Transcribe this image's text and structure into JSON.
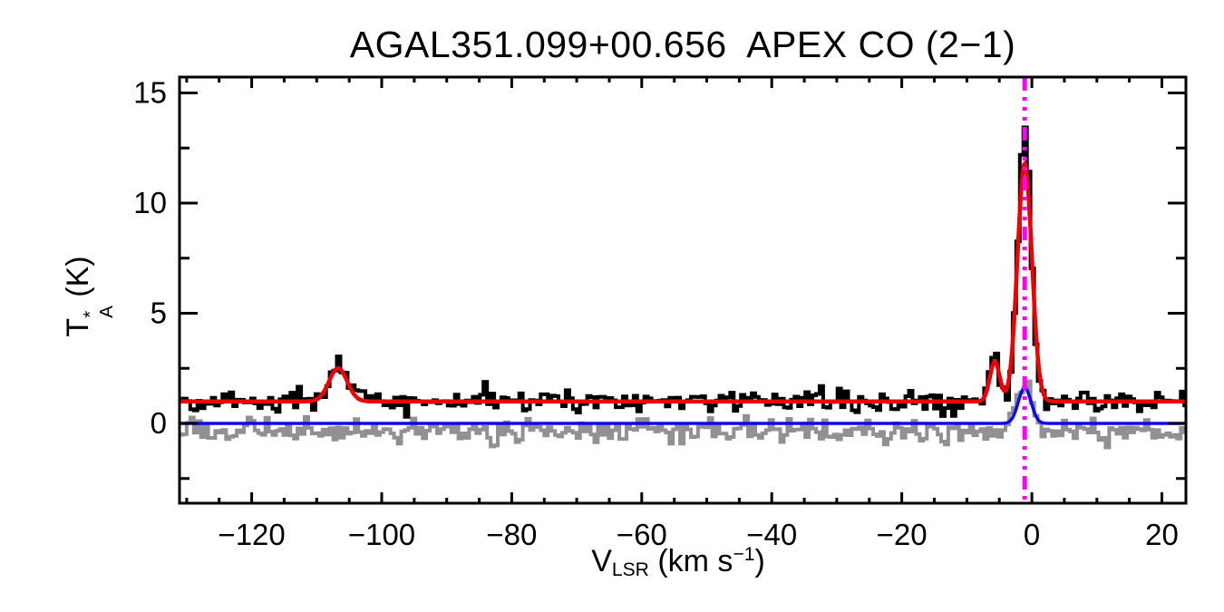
{
  "chart_data": {
    "type": "line",
    "title": "AGAL351.099+00.656  APEX CO (2−1)",
    "xlabel_parts": {
      "base": "V",
      "sub": "LSR",
      "mid": " (km s",
      "sup": "−1",
      "end": ")"
    },
    "ylabel_parts": {
      "base": "T",
      "sup": "*",
      "sub": "A",
      "unit": " (K)"
    },
    "xlim": [
      -131.1,
      23.7
    ],
    "ylim": [
      -3.62,
      15.72
    ],
    "x_ticks": {
      "major": [
        -120,
        -100,
        -80,
        -60,
        -40,
        -20,
        0,
        20
      ],
      "minor_step": 5
    },
    "y_ticks": {
      "major": [
        0,
        5,
        10,
        15
      ],
      "minor_step": 2.5
    },
    "grid": false,
    "legend": null,
    "box_axes": true,
    "channel_width_kms": 0.55,
    "series": [
      {
        "name": "residual spectrum",
        "role": "histogram",
        "color": "#919191",
        "line_width": 4,
        "baseline_K": -0.33,
        "noise_sigma_K": 0.27,
        "noise_seed": 911,
        "gaussians": [
          {
            "center_kms": -1.1,
            "amplitude_K": 2.15,
            "fwhm_kms": 2.8
          }
        ]
      },
      {
        "name": "observed CO (2-1) spectrum",
        "role": "histogram",
        "color": "#000000",
        "line_width": 4,
        "baseline_K": 1.0,
        "noise_sigma_K": 0.25,
        "noise_seed": 42,
        "gaussians": [
          {
            "center_kms": -106.7,
            "amplitude_K": 1.75,
            "fwhm_kms": 3.3
          },
          {
            "center_kms": -5.7,
            "amplitude_K": 1.95,
            "fwhm_kms": 1.8
          },
          {
            "center_kms": -1.1,
            "amplitude_K": 12.4,
            "fwhm_kms": 2.4
          }
        ]
      },
      {
        "name": "gaussian fit",
        "role": "curve",
        "color": "#ee0000",
        "line_width": 4.5,
        "baseline_K": 1.0,
        "noise_sigma_K": 0,
        "gaussians": [
          {
            "center_kms": -106.7,
            "amplitude_K": 1.5,
            "fwhm_kms": 3.3
          },
          {
            "center_kms": -5.7,
            "amplitude_K": 1.8,
            "fwhm_kms": 1.8
          },
          {
            "center_kms": -1.1,
            "amplitude_K": 10.8,
            "fwhm_kms": 2.6
          }
        ]
      },
      {
        "name": "residual fit",
        "role": "curve",
        "color": "#0a0ae6",
        "line_width": 3.5,
        "baseline_K": 0.0,
        "noise_sigma_K": 0,
        "gaussians": [
          {
            "center_kms": -1.1,
            "amplitude_K": 1.62,
            "fwhm_kms": 2.3
          }
        ]
      }
    ],
    "vline": {
      "x_kms": -1.1,
      "color": "#ff00ff",
      "style": "dash-dot-dot-dot",
      "label": "systemic velocity marker"
    },
    "observed_peak_K": 13.4,
    "fit_peak_K": 11.8
  }
}
